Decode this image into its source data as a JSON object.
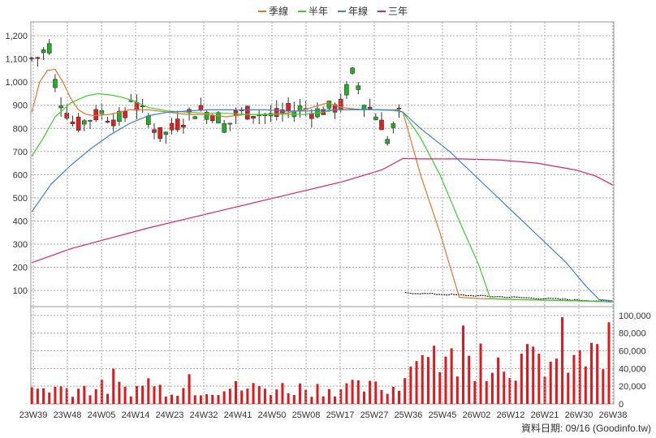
{
  "chart_data": {
    "type": "candlestick",
    "price_axis": {
      "ylim": [
        30,
        1260
      ],
      "ticks": [
        "100",
        "200",
        "300",
        "400",
        "500",
        "600",
        "700",
        "800",
        "900",
        "1,000",
        "1,100",
        "1,200"
      ],
      "tick_values": [
        100,
        200,
        300,
        400,
        500,
        600,
        700,
        800,
        900,
        1000,
        1100,
        1200
      ]
    },
    "volume_axis": {
      "ylim": [
        0,
        110000
      ],
      "ticks": [
        "0",
        "20,000",
        "40,000",
        "60,000",
        "80,000",
        "100,000"
      ],
      "tick_values": [
        0,
        20000,
        40000,
        60000,
        80000,
        100000
      ]
    },
    "x_ticks": [
      "23W39",
      "23W48",
      "24W05",
      "24W14",
      "24W23",
      "24W32",
      "24W41",
      "24W50",
      "25W08",
      "25W17",
      "25W27",
      "25W36",
      "25W45",
      "26W02",
      "26W12",
      "26W21",
      "26W30",
      "26W38"
    ],
    "grid": true,
    "legend_position": "top-center",
    "series": [
      {
        "name": "季線",
        "color": "#e8742b"
      },
      {
        "name": "半年",
        "color": "#3ecf2e"
      },
      {
        "name": "年線",
        "color": "#3d7fd9"
      },
      {
        "name": "三年",
        "color": "#d6246e"
      }
    ],
    "ma_points": {
      "季線": [
        [
          0,
          870
        ],
        [
          4,
          1000
        ],
        [
          8,
          1050
        ],
        [
          12,
          1055
        ],
        [
          16,
          1000
        ],
        [
          20,
          930
        ],
        [
          24,
          880
        ],
        [
          28,
          860
        ],
        [
          32,
          855
        ],
        [
          40,
          860
        ],
        [
          50,
          880
        ],
        [
          60,
          880
        ],
        [
          70,
          870
        ],
        [
          80,
          860
        ],
        [
          90,
          860
        ],
        [
          100,
          850
        ],
        [
          110,
          860
        ],
        [
          120,
          860
        ],
        [
          130,
          865
        ],
        [
          140,
          880
        ],
        [
          148,
          900
        ],
        [
          152,
          910
        ],
        [
          160,
          890
        ],
        [
          170,
          880
        ],
        [
          180,
          880
        ],
        [
          188,
          880
        ],
        [
          191,
          870
        ],
        [
          200,
          600
        ],
        [
          210,
          350
        ],
        [
          220,
          70
        ],
        [
          230,
          65
        ],
        [
          250,
          60
        ],
        [
          280,
          55
        ],
        [
          299,
          50
        ]
      ],
      "半年": [
        [
          0,
          680
        ],
        [
          6,
          760
        ],
        [
          12,
          850
        ],
        [
          20,
          910
        ],
        [
          28,
          940
        ],
        [
          34,
          950
        ],
        [
          40,
          945
        ],
        [
          46,
          935
        ],
        [
          52,
          920
        ],
        [
          60,
          890
        ],
        [
          70,
          875
        ],
        [
          80,
          870
        ],
        [
          90,
          865
        ],
        [
          100,
          865
        ],
        [
          110,
          860
        ],
        [
          120,
          860
        ],
        [
          130,
          862
        ],
        [
          140,
          860
        ],
        [
          150,
          870
        ],
        [
          156,
          880
        ],
        [
          166,
          880
        ],
        [
          176,
          880
        ],
        [
          186,
          878
        ],
        [
          191,
          870
        ],
        [
          200,
          760
        ],
        [
          210,
          600
        ],
        [
          220,
          400
        ],
        [
          230,
          210
        ],
        [
          236,
          65
        ],
        [
          250,
          60
        ],
        [
          280,
          55
        ],
        [
          299,
          50
        ]
      ],
      "年線": [
        [
          0,
          440
        ],
        [
          10,
          560
        ],
        [
          20,
          640
        ],
        [
          30,
          710
        ],
        [
          40,
          770
        ],
        [
          50,
          820
        ],
        [
          60,
          855
        ],
        [
          70,
          870
        ],
        [
          80,
          875
        ],
        [
          90,
          880
        ],
        [
          100,
          880
        ],
        [
          110,
          880
        ],
        [
          120,
          880
        ],
        [
          130,
          875
        ],
        [
          140,
          875
        ],
        [
          150,
          878
        ],
        [
          160,
          880
        ],
        [
          170,
          882
        ],
        [
          180,
          880
        ],
        [
          188,
          878
        ],
        [
          191,
          870
        ],
        [
          200,
          800
        ],
        [
          215,
          700
        ],
        [
          230,
          580
        ],
        [
          245,
          460
        ],
        [
          260,
          340
        ],
        [
          275,
          220
        ],
        [
          285,
          120
        ],
        [
          292,
          60
        ],
        [
          299,
          55
        ]
      ],
      "三年": [
        [
          0,
          220
        ],
        [
          20,
          280
        ],
        [
          40,
          325
        ],
        [
          60,
          370
        ],
        [
          80,
          410
        ],
        [
          100,
          450
        ],
        [
          120,
          490
        ],
        [
          140,
          530
        ],
        [
          160,
          570
        ],
        [
          180,
          620
        ],
        [
          191,
          670
        ],
        [
          200,
          668
        ],
        [
          220,
          668
        ],
        [
          240,
          664
        ],
        [
          260,
          650
        ],
        [
          280,
          620
        ],
        [
          290,
          595
        ],
        [
          299,
          555
        ]
      ]
    },
    "price_model": {
      "points": [
        [
          0,
          1100
        ],
        [
          5,
          1110
        ],
        [
          8,
          1180
        ],
        [
          10,
          1130
        ],
        [
          12,
          1000
        ],
        [
          15,
          920
        ],
        [
          18,
          870
        ],
        [
          22,
          810
        ],
        [
          26,
          820
        ],
        [
          28,
          840
        ],
        [
          32,
          850
        ],
        [
          36,
          870
        ],
        [
          40,
          845
        ],
        [
          44,
          840
        ],
        [
          48,
          850
        ],
        [
          50,
          950
        ],
        [
          55,
          880
        ],
        [
          60,
          850
        ],
        [
          65,
          770
        ],
        [
          70,
          780
        ],
        [
          75,
          820
        ],
        [
          80,
          850
        ],
        [
          85,
          880
        ],
        [
          90,
          870
        ],
        [
          95,
          860
        ],
        [
          100,
          800
        ],
        [
          105,
          860
        ],
        [
          110,
          870
        ],
        [
          115,
          865
        ],
        [
          120,
          860
        ],
        [
          125,
          850
        ],
        [
          130,
          870
        ],
        [
          135,
          880
        ],
        [
          140,
          890
        ],
        [
          145,
          870
        ],
        [
          150,
          880
        ],
        [
          155,
          890
        ],
        [
          160,
          900
        ],
        [
          163,
          1000
        ],
        [
          166,
          1050
        ],
        [
          170,
          920
        ],
        [
          175,
          880
        ],
        [
          180,
          820
        ],
        [
          183,
          750
        ],
        [
          188,
          840
        ],
        [
          191,
          890
        ]
      ]
    },
    "pre_region_end": 191
  },
  "footer": {
    "credit": "資料日期: 09/16  (Goodinfo.tw)"
  }
}
